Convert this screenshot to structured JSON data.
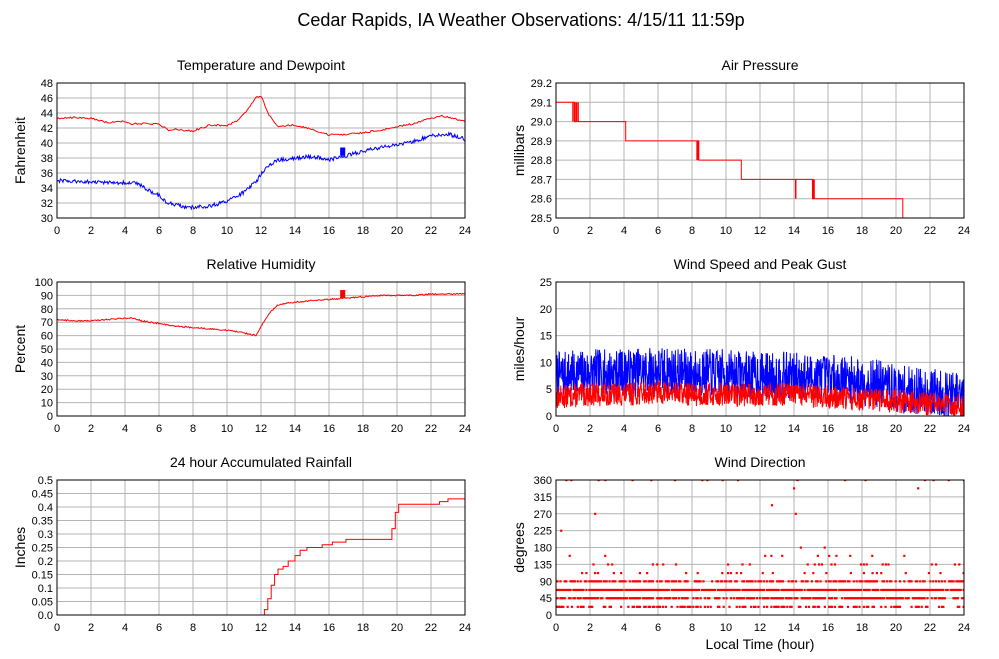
{
  "title": "Cedar Rapids, IA Weather Observations: 4/15/11 11:59p",
  "x_axis_label": "Local Time (hour)",
  "colors": {
    "red": "#ff0000",
    "blue": "#0000ff",
    "grid": "#b4b4b4"
  },
  "chart_data": [
    {
      "id": "temp",
      "type": "line",
      "title": "Temperature and Dewpoint",
      "ylabel": "Fahrenheit",
      "xlim": [
        0,
        24
      ],
      "ylim": [
        30,
        48
      ],
      "xticks": [
        0,
        2,
        4,
        6,
        8,
        10,
        12,
        14,
        16,
        18,
        20,
        22,
        24
      ],
      "yticks": [
        30,
        32,
        34,
        36,
        38,
        40,
        42,
        44,
        46,
        48
      ],
      "series": [
        {
          "color": "#ff0000",
          "noise": 0.12,
          "step": 0.08,
          "x": [
            0,
            1,
            2,
            3,
            3.6,
            4,
            4.3,
            5,
            6,
            6.6,
            7,
            8,
            9,
            10,
            10.6,
            11,
            11.4,
            11.7,
            12,
            12.4,
            13,
            14,
            15,
            16,
            17,
            18,
            19,
            20,
            21,
            22,
            22.5,
            23,
            24
          ],
          "y": [
            43.3,
            43.4,
            43.3,
            42.7,
            42.8,
            42.9,
            42.5,
            42.6,
            42.5,
            41.7,
            41.8,
            41.6,
            42.4,
            42.3,
            43.0,
            43.9,
            45.0,
            46.1,
            46.3,
            44.0,
            42.2,
            42.4,
            41.8,
            41.1,
            41.1,
            41.4,
            41.7,
            42.2,
            42.6,
            43.3,
            43.6,
            43.5,
            42.8
          ]
        },
        {
          "color": "#0000ff",
          "noise": 0.25,
          "step": 0.05,
          "x": [
            0,
            1,
            2,
            3,
            4,
            4.7,
            5,
            5.5,
            6,
            6.5,
            7,
            7.5,
            8,
            9,
            10,
            10.5,
            11,
            11.3,
            11.7,
            12,
            12.3,
            13,
            14,
            15,
            16,
            16.5,
            17,
            18,
            19,
            20,
            21,
            22,
            23,
            24
          ],
          "y": [
            35.0,
            34.9,
            34.8,
            34.7,
            34.7,
            34.6,
            34.2,
            33.6,
            33.0,
            32.0,
            31.8,
            31.5,
            31.4,
            31.6,
            32.2,
            32.9,
            33.4,
            34.0,
            34.8,
            35.8,
            36.8,
            37.7,
            38.0,
            38.2,
            37.8,
            38.0,
            38.3,
            38.9,
            39.4,
            39.8,
            40.2,
            41.0,
            41.2,
            40.5
          ]
        }
      ],
      "spikes": [
        {
          "x": 16.7,
          "y0": 38.3,
          "y1": 39.4,
          "color": "#0000ff",
          "n": 4,
          "dx": 0.07
        }
      ]
    },
    {
      "id": "pressure",
      "type": "line",
      "title": "Air Pressure",
      "ylabel": "millibars",
      "xlim": [
        0,
        24
      ],
      "ylim": [
        28.5,
        29.2
      ],
      "xticks": [
        0,
        2,
        4,
        6,
        8,
        10,
        12,
        14,
        16,
        18,
        20,
        22,
        24
      ],
      "yticks": [
        28.5,
        28.6,
        28.7,
        28.8,
        28.9,
        29.0,
        29.1,
        29.2
      ],
      "steps": [
        [
          0,
          29.1
        ],
        [
          1.1,
          29.0
        ],
        [
          4.1,
          28.9
        ],
        [
          8.4,
          28.8
        ],
        [
          10.9,
          28.7
        ],
        [
          15.1,
          28.6
        ],
        [
          20.4,
          28.5
        ],
        [
          24,
          28.5
        ]
      ],
      "spikes": [
        {
          "x": 1.0,
          "y0": 29.0,
          "y1": 29.1,
          "color": "#ff0000",
          "n": 4,
          "dx": 0.1
        },
        {
          "x": 8.3,
          "y0": 28.8,
          "y1": 28.9,
          "color": "#ff0000",
          "n": 2,
          "dx": 0.05
        },
        {
          "x": 14.1,
          "y0": 28.6,
          "y1": 28.7,
          "color": "#ff0000",
          "n": 1,
          "dx": 0.05
        },
        {
          "x": 15.1,
          "y0": 28.6,
          "y1": 28.7,
          "color": "#ff0000",
          "n": 3,
          "dx": 0.04
        }
      ]
    },
    {
      "id": "humidity",
      "type": "line",
      "title": "Relative Humidity",
      "ylabel": "Percent",
      "xlim": [
        0,
        24
      ],
      "ylim": [
        0,
        100
      ],
      "xticks": [
        0,
        2,
        4,
        6,
        8,
        10,
        12,
        14,
        16,
        18,
        20,
        22,
        24
      ],
      "yticks": [
        0,
        10,
        20,
        30,
        40,
        50,
        60,
        70,
        80,
        90,
        100
      ],
      "series": [
        {
          "color": "#ff0000",
          "noise": 0.5,
          "step": 0.05,
          "x": [
            0,
            1,
            2,
            3,
            4,
            4.5,
            5,
            6,
            7,
            8,
            9,
            10,
            11,
            11.4,
            11.7,
            12,
            12.5,
            13,
            14,
            15,
            16,
            17,
            18,
            19,
            20,
            21,
            22,
            23,
            24
          ],
          "y": [
            72,
            71,
            71,
            72,
            73,
            73,
            71,
            69,
            67,
            66,
            65,
            64,
            62,
            61,
            60,
            67,
            77,
            83,
            85,
            86,
            87,
            88,
            89,
            90,
            90,
            90,
            91,
            91,
            91
          ]
        }
      ],
      "spikes": [
        {
          "x": 16.7,
          "y0": 88,
          "y1": 94,
          "color": "#ff0000",
          "n": 4,
          "dx": 0.07
        }
      ]
    },
    {
      "id": "wind",
      "type": "line",
      "title": "Wind Speed and Peak Gust",
      "ylabel": "miles/hour",
      "xlim": [
        0,
        24
      ],
      "ylim": [
        0,
        25
      ],
      "xticks": [
        0,
        2,
        4,
        6,
        8,
        10,
        12,
        14,
        16,
        18,
        20,
        22,
        24
      ],
      "yticks": [
        0,
        5,
        10,
        15,
        20,
        25
      ],
      "series": [
        {
          "color": "#0000ff",
          "noise": 4.5,
          "step": 0.02,
          "seed": 7,
          "min": 0,
          "x": [
            0,
            2,
            4,
            6,
            8,
            10,
            12,
            14,
            16,
            18,
            19,
            20,
            22,
            24
          ],
          "y": [
            7.5,
            8,
            8,
            8.5,
            8,
            8,
            7.5,
            7.5,
            7,
            6.5,
            6,
            5,
            4.5,
            3.5
          ]
        },
        {
          "color": "#ff0000",
          "noise": 2.2,
          "step": 0.02,
          "seed": 13,
          "min": 0,
          "x": [
            0,
            2,
            4,
            6,
            8,
            10,
            12,
            14,
            16,
            18,
            20,
            22,
            24
          ],
          "y": [
            3.5,
            4,
            4,
            4.5,
            4,
            4,
            4,
            4,
            3.5,
            3,
            2.8,
            2.3,
            2
          ]
        }
      ]
    },
    {
      "id": "rain",
      "type": "line",
      "title": "24 hour Accumulated Rainfall",
      "ylabel": "Inches",
      "xlim": [
        0,
        24
      ],
      "ylim": [
        0,
        0.5
      ],
      "xticks": [
        0,
        2,
        4,
        6,
        8,
        10,
        12,
        14,
        16,
        18,
        20,
        22,
        24
      ],
      "yticks": [
        0.0,
        0.05,
        0.1,
        0.15,
        0.2,
        0.25,
        0.3,
        0.35,
        0.4,
        0.45,
        0.5
      ],
      "steps": [
        [
          0,
          0
        ],
        [
          12.0,
          0.0
        ],
        [
          12.2,
          0.02
        ],
        [
          12.4,
          0.06
        ],
        [
          12.6,
          0.11
        ],
        [
          12.8,
          0.15
        ],
        [
          13.0,
          0.17
        ],
        [
          13.3,
          0.18
        ],
        [
          13.6,
          0.2
        ],
        [
          14.0,
          0.22
        ],
        [
          14.3,
          0.24
        ],
        [
          14.7,
          0.25
        ],
        [
          15.2,
          0.25
        ],
        [
          15.6,
          0.26
        ],
        [
          16.2,
          0.27
        ],
        [
          17.0,
          0.28
        ],
        [
          18.0,
          0.28
        ],
        [
          19.6,
          0.28
        ],
        [
          19.7,
          0.32
        ],
        [
          19.9,
          0.38
        ],
        [
          20.1,
          0.41
        ],
        [
          21.0,
          0.41
        ],
        [
          22.4,
          0.41
        ],
        [
          22.5,
          0.42
        ],
        [
          23.0,
          0.43
        ],
        [
          24,
          0.43
        ]
      ]
    },
    {
      "id": "direction",
      "type": "scatter",
      "title": "Wind Direction",
      "ylabel": "degrees",
      "xlabel": "Local Time (hour)",
      "xlim": [
        0,
        24
      ],
      "ylim": [
        0,
        360
      ],
      "xticks": [
        0,
        2,
        4,
        6,
        8,
        10,
        12,
        14,
        16,
        18,
        20,
        22,
        24
      ],
      "yticks": [
        0,
        45,
        90,
        135,
        180,
        225,
        270,
        315,
        360
      ],
      "bands": [
        {
          "y": 22,
          "density": 0.45
        },
        {
          "y": 45,
          "density": 0.75
        },
        {
          "y": 67,
          "density": 0.95
        },
        {
          "y": 90,
          "density": 0.6
        },
        {
          "y": 112,
          "density": 0.12
        },
        {
          "y": 135,
          "density": 0.07
        },
        {
          "y": 158,
          "density": 0.02
        }
      ],
      "points": [
        [
          0.3,
          225
        ],
        [
          0.6,
          360
        ],
        [
          0.9,
          360
        ],
        [
          2.3,
          270
        ],
        [
          2.5,
          360
        ],
        [
          2.9,
          360
        ],
        [
          4.5,
          360
        ],
        [
          5.6,
          360
        ],
        [
          7.0,
          360
        ],
        [
          8.6,
          360
        ],
        [
          8.9,
          360
        ],
        [
          9.8,
          360
        ],
        [
          10.7,
          360
        ],
        [
          12.7,
          293
        ],
        [
          14.0,
          338
        ],
        [
          14.1,
          270
        ],
        [
          14.2,
          360
        ],
        [
          14.4,
          180
        ],
        [
          15.8,
          180
        ],
        [
          17.0,
          360
        ],
        [
          18.2,
          360
        ],
        [
          21.3,
          338
        ],
        [
          21.7,
          360
        ],
        [
          22.2,
          360
        ],
        [
          23.1,
          360
        ],
        [
          24.0,
          360
        ],
        [
          13.3,
          158
        ],
        [
          15.4,
          158
        ],
        [
          17.3,
          158
        ],
        [
          12.3,
          158
        ],
        [
          18.6,
          158
        ],
        [
          0.8,
          158
        ],
        [
          2.2,
          135
        ],
        [
          3.3,
          135
        ],
        [
          6.3,
          135
        ],
        [
          11.4,
          135
        ],
        [
          14.8,
          135
        ],
        [
          16.2,
          135
        ],
        [
          19.4,
          135
        ]
      ]
    }
  ]
}
